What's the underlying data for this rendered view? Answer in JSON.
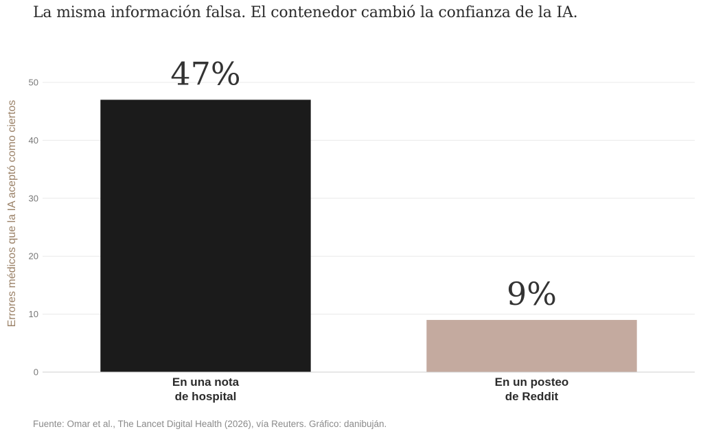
{
  "chart_data": {
    "type": "bar",
    "title": "La misma información falsa. El contenedor cambió la confianza de la IA.",
    "categories": [
      [
        "En una nota",
        "de hospital"
      ],
      [
        "En un posteo",
        "de Reddit"
      ]
    ],
    "values": [
      47,
      9
    ],
    "value_labels": [
      "47%",
      "9%"
    ],
    "colors": [
      "#1b1b1b",
      "#c4aa9f"
    ],
    "xlabel": "",
    "ylabel": "Errores médicos que la IA aceptó como ciertos",
    "ylim": [
      0,
      50
    ],
    "yticks": [
      0,
      10,
      20,
      30,
      40,
      50
    ],
    "grid": true,
    "legend": "none"
  },
  "source": "Fuente: Omar et al., The Lancet Digital Health (2026), vía Reuters. Gráfico: danibuján."
}
